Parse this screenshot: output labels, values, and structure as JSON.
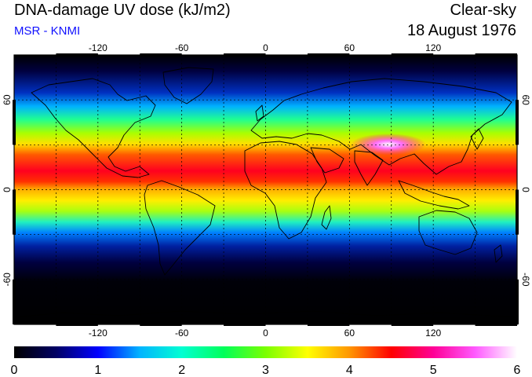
{
  "header": {
    "title": "DNA-damage UV dose (kJ/m2)",
    "source": "MSR - KNMI",
    "sky_condition": "Clear-sky",
    "date": "18 August 1976"
  },
  "map": {
    "projection": "equirectangular",
    "lon_range": [
      -180,
      180
    ],
    "lat_range": [
      -90,
      90
    ],
    "lon_ticks": [
      "-120",
      "-60",
      "0",
      "60",
      "120"
    ],
    "lat_ticks": [
      "60",
      "0",
      "-60"
    ],
    "graticule_lon": [
      -150,
      -120,
      -90,
      -60,
      -30,
      0,
      30,
      60,
      90,
      120,
      150
    ],
    "graticule_lat": [
      -60,
      -30,
      0,
      30,
      60
    ],
    "colors": {
      "frame": "#000000",
      "grid": "#000000",
      "coast": "#000000"
    }
  },
  "colorbar": {
    "ticks": [
      "0",
      "1",
      "2",
      "3",
      "4",
      "5",
      "6"
    ],
    "min": 0,
    "max": 6,
    "colors": [
      "#000000",
      "#000064",
      "#0000ff",
      "#00b4ff",
      "#00ffd2",
      "#00ff5a",
      "#7aff00",
      "#ffff00",
      "#ff9600",
      "#ff0000",
      "#ff0096",
      "#ff5aff",
      "#ffffff"
    ]
  }
}
